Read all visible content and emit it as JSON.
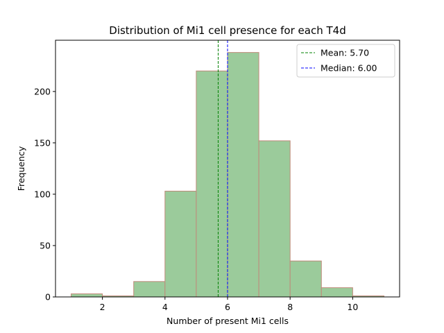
{
  "chart_data": {
    "type": "bar",
    "title": "Distribution of Mi1 cell presence for each T4d",
    "xlabel": "Number of present Mi1 cells",
    "ylabel": "Frequency",
    "bins": [
      {
        "x0": 1,
        "x1": 2,
        "value": 3
      },
      {
        "x0": 2,
        "x1": 3,
        "value": 1
      },
      {
        "x0": 3,
        "x1": 4,
        "value": 15
      },
      {
        "x0": 4,
        "x1": 5,
        "value": 103
      },
      {
        "x0": 5,
        "x1": 6,
        "value": 220
      },
      {
        "x0": 6,
        "x1": 7,
        "value": 238
      },
      {
        "x0": 7,
        "x1": 8,
        "value": 152
      },
      {
        "x0": 8,
        "x1": 9,
        "value": 35
      },
      {
        "x0": 9,
        "x1": 10,
        "value": 9
      },
      {
        "x0": 10,
        "x1": 11,
        "value": 1
      }
    ],
    "xlim": [
      0.5,
      11.5
    ],
    "ylim": [
      0,
      249.9
    ],
    "xticks": [
      2,
      4,
      6,
      8,
      10
    ],
    "yticks": [
      0,
      50,
      100,
      150,
      200
    ],
    "grid": false,
    "bar_fill": "#9bcb9b",
    "bar_edge": "#c08a7a",
    "reference_lines": [
      {
        "label": "Mean: 5.70",
        "value": 5.7,
        "color": "#008000",
        "style": "dashed"
      },
      {
        "label": "Median: 6.00",
        "value": 6.0,
        "color": "#0000ff",
        "style": "dashed"
      }
    ],
    "legend_position": "top-right"
  }
}
